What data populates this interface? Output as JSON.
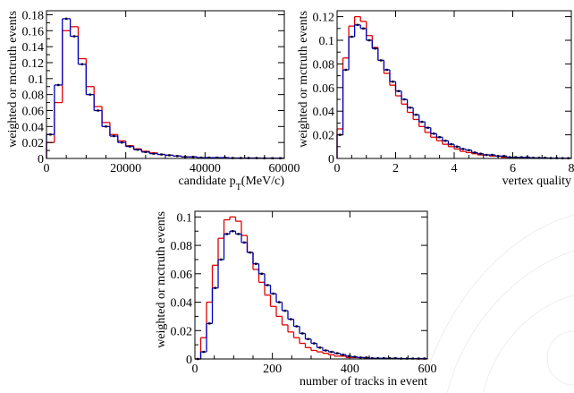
{
  "chart_data": [
    {
      "type": "histogram",
      "ylabel": "weighted or mctruth events",
      "xlabel": [
        "candidate p",
        "T",
        "(MeV/c)"
      ],
      "bins": [
        0,
        2000,
        4000,
        6000,
        8000,
        10000,
        12000,
        14000,
        16000,
        18000,
        20000,
        22000,
        24000,
        26000,
        28000,
        30000,
        32000,
        34000,
        36000,
        38000,
        40000,
        42000,
        44000,
        46000,
        48000,
        50000,
        52000,
        54000,
        56000,
        58000,
        60000
      ],
      "series": [
        {
          "color": "#e00000",
          "values": [
            0.02,
            0.07,
            0.16,
            0.165,
            0.125,
            0.09,
            0.065,
            0.045,
            0.03,
            0.022,
            0.016,
            0.012,
            0.009,
            0.007,
            0.005,
            0.004,
            0.003,
            0.002,
            0.002,
            0.001,
            0.001,
            0.001,
            0.001,
            0.0005,
            0.0005,
            0.0005,
            0.0005,
            0.0003,
            0.0003,
            0.0003
          ]
        },
        {
          "color": "#0000c0",
          "markers": true,
          "values": [
            0.03,
            0.092,
            0.175,
            0.153,
            0.118,
            0.08,
            0.06,
            0.04,
            0.028,
            0.02,
            0.015,
            0.011,
            0.008,
            0.006,
            0.005,
            0.004,
            0.003,
            0.002,
            0.002,
            0.001,
            0.001,
            0.001,
            0.001,
            0.0005,
            0.0005,
            0.0005,
            0.0005,
            0.0003,
            0.0003,
            0.0003
          ]
        }
      ],
      "xlim": [
        0,
        60000
      ],
      "xticks": [
        0,
        20000,
        40000,
        60000
      ],
      "ylim": [
        0,
        0.185
      ],
      "yticks": [
        0,
        0.02,
        0.04,
        0.06,
        0.08,
        0.1,
        0.12,
        0.14,
        0.16,
        0.18
      ]
    },
    {
      "type": "histogram",
      "ylabel": "weighted or mctruth events",
      "xlabel": "vertex quality",
      "bins": [
        0,
        0.2,
        0.4,
        0.6,
        0.8,
        1,
        1.2,
        1.4,
        1.6,
        1.8,
        2,
        2.2,
        2.4,
        2.6,
        2.8,
        3,
        3.2,
        3.4,
        3.6,
        3.8,
        4,
        4.2,
        4.4,
        4.6,
        4.8,
        5,
        5.2,
        5.4,
        5.6,
        5.8,
        6,
        6.2,
        6.4,
        6.6,
        6.8,
        7,
        7.2,
        7.4,
        7.6,
        7.8,
        8
      ],
      "series": [
        {
          "color": "#e00000",
          "values": [
            0.025,
            0.085,
            0.112,
            0.12,
            0.116,
            0.104,
            0.094,
            0.083,
            0.072,
            0.062,
            0.053,
            0.046,
            0.039,
            0.033,
            0.027,
            0.022,
            0.018,
            0.015,
            0.012,
            0.01,
            0.008,
            0.006,
            0.005,
            0.004,
            0.003,
            0.003,
            0.002,
            0.002,
            0.001,
            0.001,
            0.001,
            0.0005,
            0.0005,
            0.0005,
            0.0003,
            0.0003,
            0.0002,
            0.0002,
            0.0001,
            0.0001
          ]
        },
        {
          "color": "#0000c0",
          "markers": true,
          "values": [
            0.02,
            0.075,
            0.103,
            0.113,
            0.11,
            0.1,
            0.093,
            0.083,
            0.075,
            0.065,
            0.057,
            0.05,
            0.043,
            0.037,
            0.031,
            0.026,
            0.021,
            0.018,
            0.015,
            0.012,
            0.01,
            0.008,
            0.007,
            0.005,
            0.004,
            0.003,
            0.003,
            0.002,
            0.002,
            0.001,
            0.001,
            0.001,
            0.001,
            0.0005,
            0.0005,
            0.0005,
            0.0003,
            0.0003,
            0.0002,
            0.0002
          ]
        }
      ],
      "xlim": [
        0,
        8
      ],
      "xticks": [
        0,
        2,
        4,
        6,
        8
      ],
      "ylim": [
        0,
        0.125
      ],
      "yticks": [
        0,
        0.02,
        0.04,
        0.06,
        0.08,
        0.1,
        0.12
      ]
    },
    {
      "type": "histogram",
      "ylabel": "weighted or mctruth events",
      "xlabel": "number of tracks in event",
      "bins": [
        0,
        15,
        30,
        45,
        60,
        75,
        90,
        105,
        120,
        135,
        150,
        165,
        180,
        195,
        210,
        225,
        240,
        255,
        270,
        285,
        300,
        315,
        330,
        345,
        360,
        375,
        390,
        405,
        420,
        435,
        450,
        465,
        480,
        495,
        510,
        525,
        540,
        555,
        570,
        585,
        600
      ],
      "series": [
        {
          "color": "#e00000",
          "values": [
            0,
            0.015,
            0.04,
            0.066,
            0.085,
            0.098,
            0.1,
            0.097,
            0.087,
            0.075,
            0.063,
            0.054,
            0.045,
            0.037,
            0.03,
            0.024,
            0.019,
            0.015,
            0.011,
            0.008,
            0.006,
            0.005,
            0.004,
            0.003,
            0.002,
            0.002,
            0.001,
            0.001,
            0.001,
            0.0005,
            0.0005,
            0.0003,
            0.0003,
            0.0002,
            0.0002,
            0.0001,
            0.0001,
            0.0001,
            0,
            0
          ]
        },
        {
          "color": "#0000c0",
          "markers": true,
          "values": [
            0,
            0.005,
            0.025,
            0.05,
            0.07,
            0.088,
            0.09,
            0.088,
            0.082,
            0.075,
            0.067,
            0.06,
            0.052,
            0.046,
            0.04,
            0.034,
            0.028,
            0.023,
            0.018,
            0.014,
            0.011,
            0.008,
            0.006,
            0.005,
            0.004,
            0.003,
            0.002,
            0.0015,
            0.001,
            0.001,
            0.0005,
            0.0005,
            0.0005,
            0.0005,
            0.0005,
            0.0003,
            0.0003,
            0.0003,
            0.0003,
            0.0003
          ]
        }
      ],
      "xlim": [
        0,
        600
      ],
      "xticks": [
        0,
        200,
        400,
        600
      ],
      "ylim": [
        0,
        0.104
      ],
      "yticks": [
        0,
        0.02,
        0.04,
        0.06,
        0.08,
        0.1
      ]
    }
  ]
}
